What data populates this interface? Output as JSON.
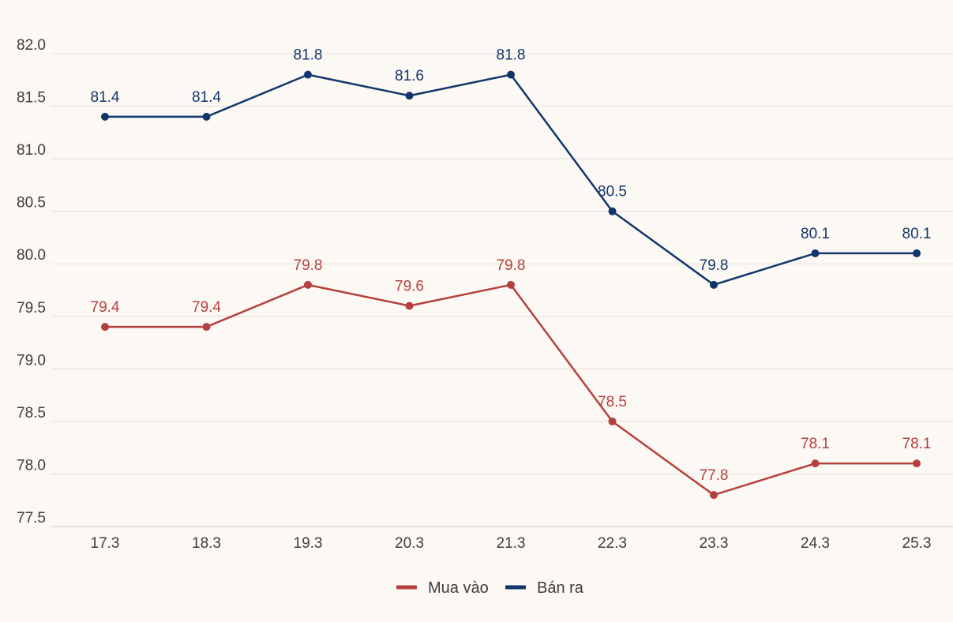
{
  "chart_data": {
    "type": "line",
    "categories": [
      "17.3",
      "18.3",
      "19.3",
      "20.3",
      "21.3",
      "22.3",
      "23.3",
      "24.3",
      "25.3"
    ],
    "series": [
      {
        "name": "Mua vào",
        "color": "#b5413f",
        "values": [
          79.4,
          79.4,
          79.8,
          79.6,
          79.8,
          78.5,
          77.8,
          78.1,
          78.1
        ],
        "labels": [
          "79.4",
          "79.4",
          "79.8",
          "79.6",
          "79.8",
          "78.5",
          "77.8",
          "78.1",
          "78.1"
        ]
      },
      {
        "name": "Bán ra",
        "color": "#12366b",
        "values": [
          81.4,
          81.4,
          81.8,
          81.6,
          81.8,
          80.5,
          79.8,
          80.1,
          80.1
        ],
        "labels": [
          "81.4",
          "81.4",
          "81.8",
          "81.6",
          "81.8",
          "80.5",
          "79.8",
          "80.1",
          "80.1"
        ]
      }
    ],
    "ylim": [
      77.5,
      82.0
    ],
    "yticks": [
      "77.5",
      "78.0",
      "78.5",
      "79.0",
      "79.5",
      "80.0",
      "80.5",
      "81.0",
      "81.5",
      "82.0"
    ],
    "grid": true,
    "legend_position": "bottom-center",
    "title": "",
    "xlabel": "",
    "ylabel": ""
  }
}
